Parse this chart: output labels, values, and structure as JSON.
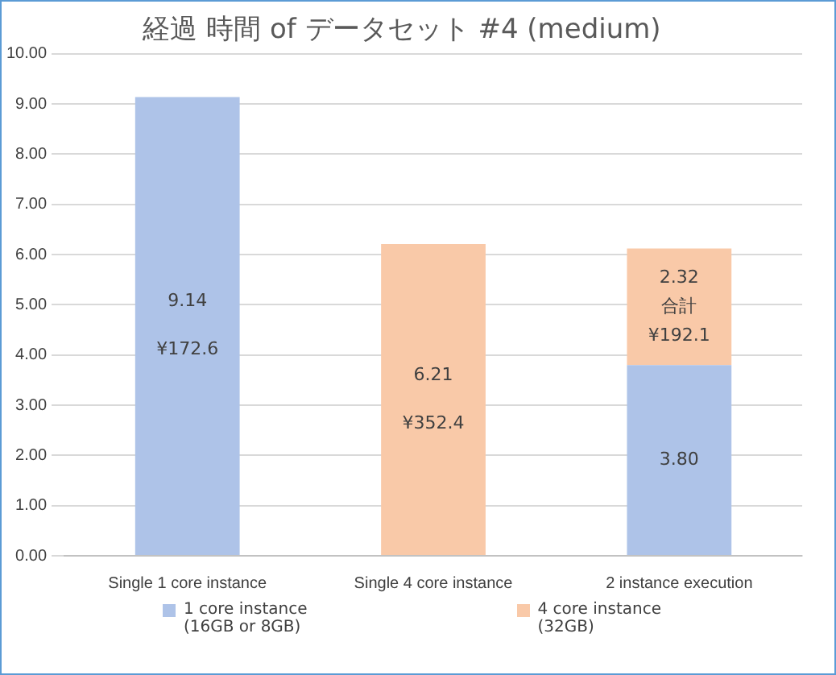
{
  "chart_data": {
    "type": "bar",
    "title": "経過 時間 of データセット #4 (medium)",
    "stacked": true,
    "categories": [
      "Single 1 core instance",
      "Single 4 core instance",
      "2 instance execution"
    ],
    "series": [
      {
        "name": "1 core instance\n(16GB or 8GB)",
        "color": "#aec3e8",
        "values": [
          9.14,
          null,
          3.8
        ],
        "value_labels": [
          "9.14\n¥172.6",
          null,
          "3.80"
        ]
      },
      {
        "name": "4 core instance\n(32GB)",
        "color": "#f9c9a8",
        "values": [
          null,
          6.21,
          2.32
        ],
        "value_labels": [
          null,
          "6.21\n¥352.4",
          "2.32\n合計\n¥192.1"
        ]
      }
    ],
    "ylim": [
      0,
      10
    ],
    "yticks": [
      {
        "value": 0,
        "label": "0.00"
      },
      {
        "value": 1,
        "label": "1.00"
      },
      {
        "value": 2,
        "label": "2.00"
      },
      {
        "value": 3,
        "label": "3.00"
      },
      {
        "value": 4,
        "label": "4.00"
      },
      {
        "value": 5,
        "label": "5.00"
      },
      {
        "value": 6,
        "label": "6.00"
      },
      {
        "value": 7,
        "label": "7.00"
      },
      {
        "value": 8,
        "label": "8.00"
      },
      {
        "value": 9,
        "label": "9.00"
      },
      {
        "value": 10,
        "label": "10.00"
      }
    ],
    "grid": "y",
    "legend": "bottom"
  }
}
